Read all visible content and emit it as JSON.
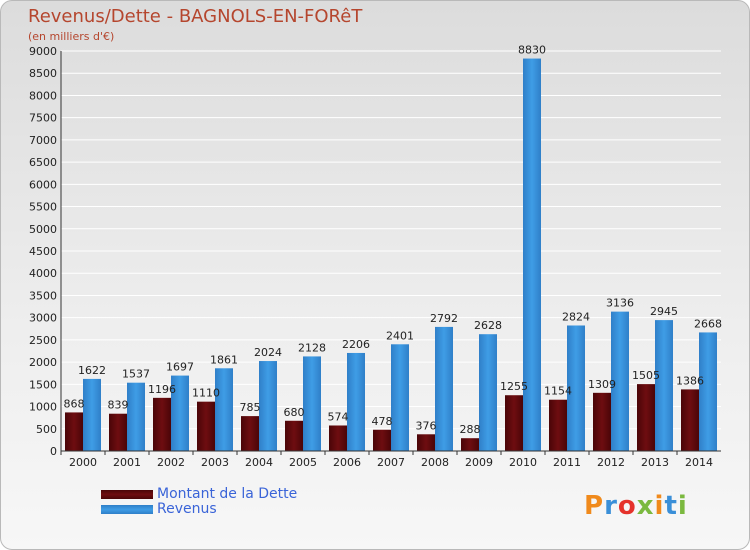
{
  "header": {
    "title": "Revenus/Dette - BAGNOLS-EN-FORêT",
    "subtitle": "(en milliers d'€)"
  },
  "logo": {
    "text": "Proxiti"
  },
  "colors": {
    "dette": "#6e0d10",
    "revenus": "#3f9de6"
  },
  "chart_data": {
    "type": "bar",
    "title": "Revenus/Dette - BAGNOLS-EN-FORêT",
    "ylabel": "(en milliers d'€)",
    "xlabel": "",
    "categories": [
      "2000",
      "2001",
      "2002",
      "2003",
      "2004",
      "2005",
      "2006",
      "2007",
      "2008",
      "2009",
      "2010",
      "2011",
      "2012",
      "2013",
      "2014"
    ],
    "ylim": [
      0,
      9000
    ],
    "yticks": [
      0,
      500,
      1000,
      1500,
      2000,
      2500,
      3000,
      3500,
      4000,
      4500,
      5000,
      5500,
      6000,
      6500,
      7000,
      7500,
      8000,
      8500,
      9000
    ],
    "grid": true,
    "legend": "bottom-left",
    "series": [
      {
        "name": "Montant de la Dette",
        "values": [
          868,
          839,
          1196,
          1110,
          785,
          680,
          574,
          478,
          376,
          288,
          1255,
          1154,
          1309,
          1505,
          1386
        ],
        "labels": [
          "868",
          "839",
          "1196",
          "1110",
          "785",
          "680",
          "574",
          "478",
          "376",
          "288",
          "1255",
          "1154",
          "1309",
          "1505",
          "1386"
        ]
      },
      {
        "name": "Revenus",
        "values": [
          1622,
          1537,
          1697,
          1861,
          2024,
          2128,
          2206,
          2401,
          2792,
          2628,
          8830,
          2824,
          3136,
          2945,
          2668
        ],
        "labels": [
          "1622",
          "1537",
          "1697",
          "1861",
          "2024",
          "2128",
          "2206",
          "2401",
          "2792",
          "2628",
          "8830",
          "2824",
          "3136",
          "2945",
          "2668"
        ]
      }
    ]
  }
}
